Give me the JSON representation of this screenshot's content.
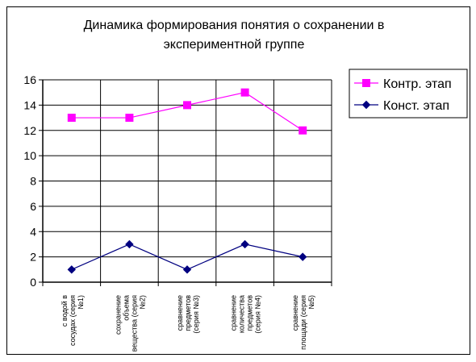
{
  "chart_data": {
    "type": "line",
    "title": [
      "Динамика формирования понятия о сохранении в",
      "экспериментной  группе"
    ],
    "categories": [
      [
        "с водой в",
        "сосудах (серия",
        "№1)"
      ],
      [
        "сохранение",
        "объема",
        "вещества (серия",
        "№2)"
      ],
      [
        "сравнение",
        "предметов",
        "(серия №3)"
      ],
      [
        "сравнение",
        "количества",
        "предметов",
        "(серия №4)"
      ],
      [
        "сравнение",
        "площади (серия",
        "№5)"
      ]
    ],
    "y_ticks": [
      "0",
      "2",
      "4",
      "6",
      "8",
      "10",
      "12",
      "14",
      "16"
    ],
    "ylim": [
      0,
      16
    ],
    "grid": true,
    "legend_position": "right",
    "series": [
      {
        "name": "Контр. этап",
        "values": [
          13,
          13,
          14,
          15,
          12
        ],
        "color": "#ff00ff",
        "marker": "square"
      },
      {
        "name": "Конст. этап",
        "values": [
          1,
          3,
          1,
          3,
          2
        ],
        "color": "#000080",
        "marker": "diamond"
      }
    ]
  }
}
